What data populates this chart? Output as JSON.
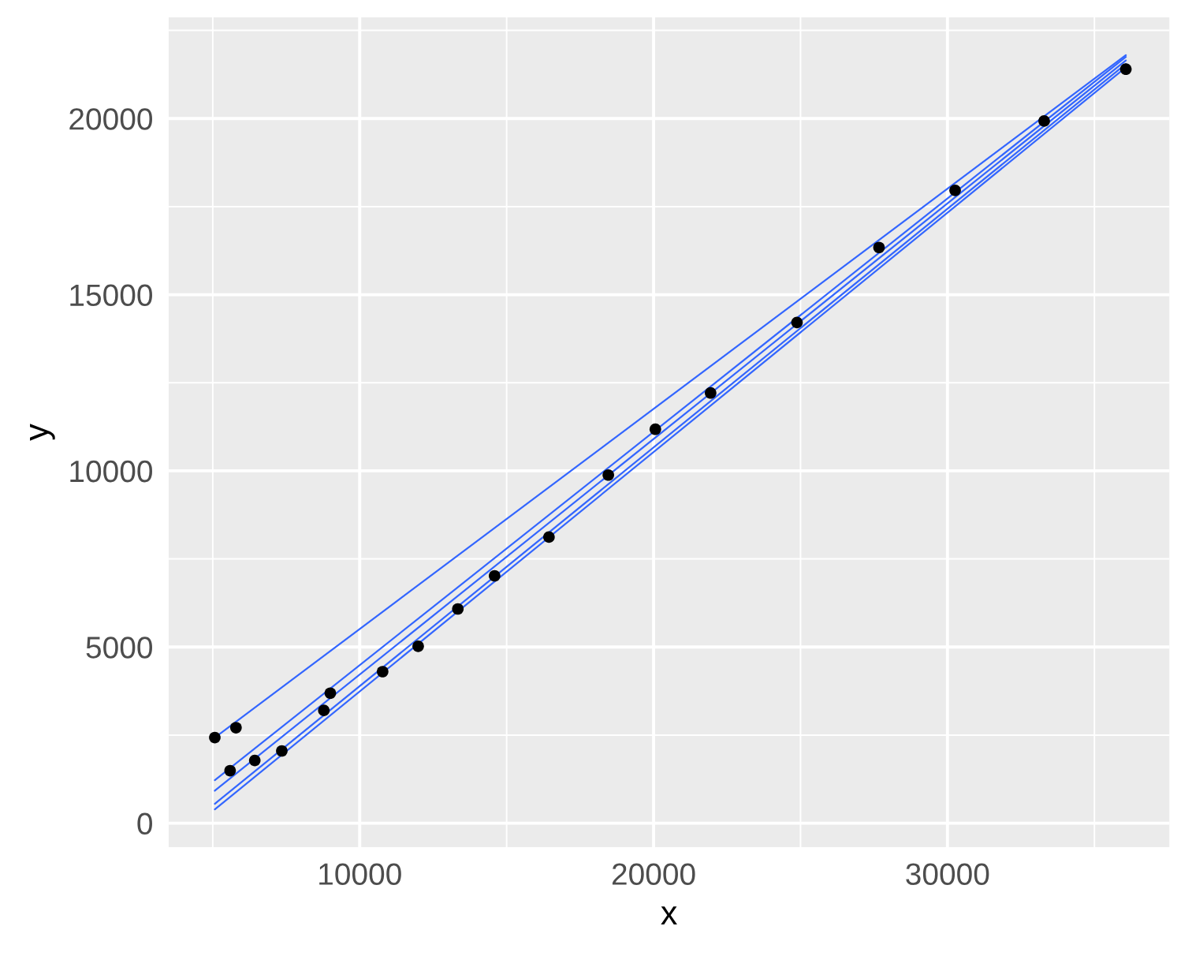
{
  "chart_data": {
    "type": "scatter",
    "xlabel": "x",
    "ylabel": "y",
    "xlim": [
      3500,
      37550
    ],
    "ylim": [
      -680,
      22870
    ],
    "xticks": [
      10000,
      20000,
      30000
    ],
    "yticks": [
      0,
      5000,
      10000,
      15000,
      20000
    ],
    "grid": true,
    "series": [
      {
        "color": "#000000",
        "marker": "circle",
        "x": [
          5070,
          5790,
          5590,
          6430,
          7350,
          8780,
          9000,
          10780,
          11990,
          13340,
          14590,
          16440,
          18460,
          20060,
          21940,
          24880,
          27670,
          30260,
          33290,
          36070
        ],
        "values": [
          2430,
          2710,
          1490,
          1780,
          2050,
          3200,
          3690,
          4300,
          5020,
          6080,
          7020,
          8120,
          9880,
          11180,
          12210,
          14210,
          16340,
          17960,
          19930,
          21400
        ]
      },
      {
        "type": "line",
        "color": "#3366ff",
        "x": [
          5070,
          36070
        ],
        "values": [
          2430,
          21800
        ]
      },
      {
        "type": "line",
        "color": "#3366ff",
        "x": [
          5070,
          36070
        ],
        "values": [
          1220,
          21750
        ]
      },
      {
        "type": "line",
        "color": "#3366ff",
        "x": [
          5070,
          36070
        ],
        "values": [
          920,
          21650
        ]
      },
      {
        "type": "line",
        "color": "#3366ff",
        "x": [
          5070,
          36070
        ],
        "values": [
          550,
          21550
        ]
      },
      {
        "type": "line",
        "color": "#3366ff",
        "x": [
          5070,
          36070
        ],
        "values": [
          390,
          21450
        ]
      }
    ]
  }
}
